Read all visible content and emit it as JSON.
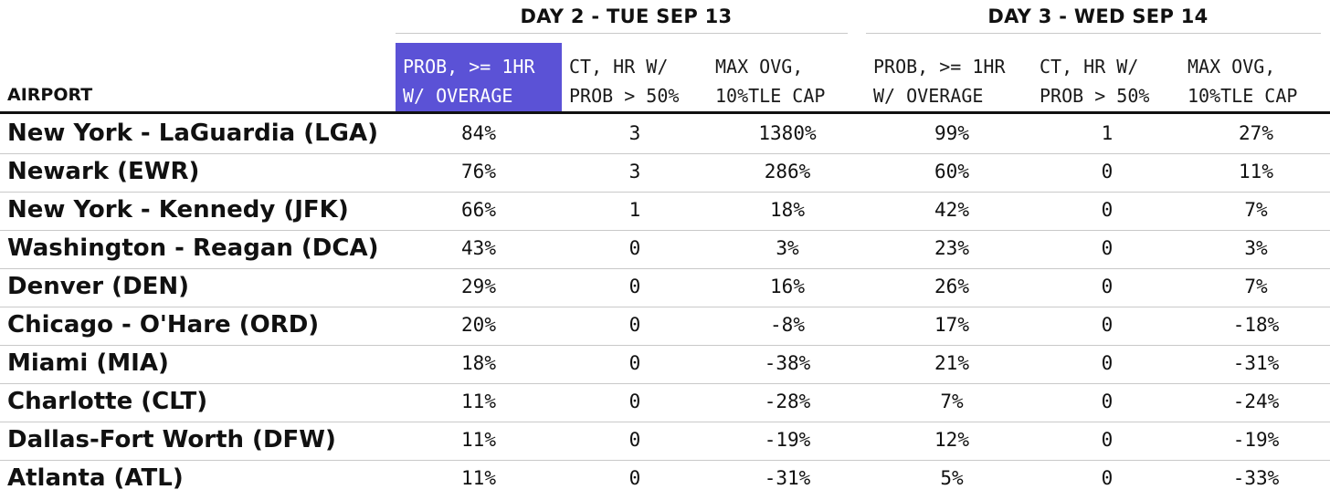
{
  "chart_data": {
    "type": "table",
    "groups": [
      {
        "title": "DAY 2 - TUE SEP 13"
      },
      {
        "title": "DAY 3 - WED SEP 14"
      }
    ],
    "row_header_label": "AIRPORT",
    "columns": [
      {
        "lines": [
          "PROB, >= 1HR",
          "W/ OVERAGE"
        ],
        "highlight": true,
        "highlight_color": "#5b52d6"
      },
      {
        "lines": [
          "CT, HR W/",
          "PROB > 50%"
        ]
      },
      {
        "lines": [
          "MAX OVG,",
          "10%TLE CAP"
        ]
      },
      {
        "lines": [
          "PROB, >= 1HR",
          "W/ OVERAGE"
        ]
      },
      {
        "lines": [
          "CT, HR W/",
          "PROB > 50%"
        ]
      },
      {
        "lines": [
          "MAX OVG,",
          "10%TLE CAP"
        ]
      }
    ],
    "rows": [
      {
        "airport": "New York - LaGuardia (LGA)",
        "values": [
          "84%",
          "3",
          "1380%",
          "99%",
          "1",
          "27%"
        ]
      },
      {
        "airport": "Newark (EWR)",
        "values": [
          "76%",
          "3",
          "286%",
          "60%",
          "0",
          "11%"
        ]
      },
      {
        "airport": "New York - Kennedy (JFK)",
        "values": [
          "66%",
          "1",
          "18%",
          "42%",
          "0",
          "7%"
        ]
      },
      {
        "airport": "Washington - Reagan (DCA)",
        "values": [
          "43%",
          "0",
          "3%",
          "23%",
          "0",
          "3%"
        ]
      },
      {
        "airport": "Denver (DEN)",
        "values": [
          "29%",
          "0",
          "16%",
          "26%",
          "0",
          "7%"
        ]
      },
      {
        "airport": "Chicago - O'Hare (ORD)",
        "values": [
          "20%",
          "0",
          "-8%",
          "17%",
          "0",
          "-18%"
        ]
      },
      {
        "airport": "Miami (MIA)",
        "values": [
          "18%",
          "0",
          "-38%",
          "21%",
          "0",
          "-31%"
        ]
      },
      {
        "airport": "Charlotte (CLT)",
        "values": [
          "11%",
          "0",
          "-28%",
          "7%",
          "0",
          "-24%"
        ]
      },
      {
        "airport": "Dallas-Fort Worth (DFW)",
        "values": [
          "11%",
          "0",
          "-19%",
          "12%",
          "0",
          "-19%"
        ]
      },
      {
        "airport": "Atlanta (ATL)",
        "values": [
          "11%",
          "0",
          "-31%",
          "5%",
          "0",
          "-33%"
        ]
      }
    ]
  }
}
